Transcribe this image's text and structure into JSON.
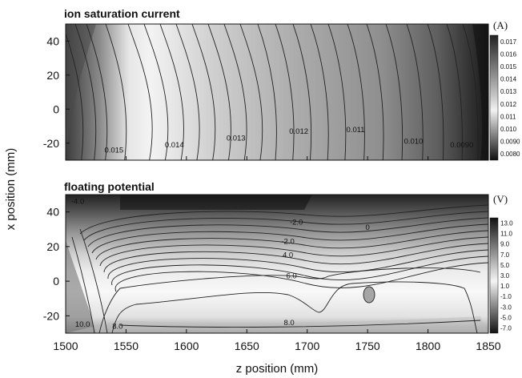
{
  "chart_data": [
    {
      "type": "contour",
      "title": "ion saturation current",
      "unit": "(A)",
      "xlabel": "z position (mm)",
      "ylabel": "x position (mm)",
      "xlim": [
        1500,
        1850
      ],
      "ylim": [
        -30,
        50
      ],
      "x_ticks": [
        "1500",
        "1550",
        "1600",
        "1650",
        "1700",
        "1750",
        "1800",
        "1850"
      ],
      "y_ticks": [
        "40",
        "20",
        "0",
        "-20"
      ],
      "colorbar_ticks": [
        "0.017",
        "0.016",
        "0.015",
        "0.014",
        "0.013",
        "0.012",
        "0.011",
        "0.010",
        "0.0090",
        "0.0080"
      ],
      "contour_labels": [
        {
          "text": "0.015",
          "z": 1540,
          "x": -24
        },
        {
          "text": "0.014",
          "z": 1590,
          "x": -21
        },
        {
          "text": "0.013",
          "z": 1641,
          "x": -17
        },
        {
          "text": "0.012",
          "z": 1693,
          "x": -13
        },
        {
          "text": "0.011",
          "z": 1740,
          "x": -12
        },
        {
          "text": "0.010",
          "z": 1788,
          "x": -19
        },
        {
          "text": "0.0090",
          "z": 1828,
          "x": -21
        }
      ]
    },
    {
      "type": "contour",
      "title": "floating potential",
      "unit": "(V)",
      "xlabel": "z position (mm)",
      "ylabel": "x position (mm)",
      "xlim": [
        1500,
        1850
      ],
      "ylim": [
        -30,
        50
      ],
      "x_ticks": [
        "1500",
        "1550",
        "1600",
        "1650",
        "1700",
        "1750",
        "1800",
        "1850"
      ],
      "y_ticks": [
        "40",
        "20",
        "0",
        "-20"
      ],
      "colorbar_ticks": [
        "13.0",
        "11.0",
        "9.0",
        "7.0",
        "5.0",
        "3.0",
        "1.0",
        "-1.0",
        "-3.0",
        "-5.0",
        "-7.0"
      ],
      "contour_labels": [
        {
          "text": "-4.0",
          "z": 1510,
          "x": 46
        },
        {
          "text": "-2.0",
          "z": 1691,
          "x": 34
        },
        {
          "text": "0",
          "z": 1750,
          "x": 31
        },
        {
          "text": "-2.0",
          "z": 1684,
          "x": 23
        },
        {
          "text": "4.0",
          "z": 1684,
          "x": 15
        },
        {
          "text": "6.0",
          "z": 1687,
          "x": 3
        },
        {
          "text": "10.0",
          "z": 1514,
          "x": -25
        },
        {
          "text": "8.0",
          "z": 1543,
          "x": -26
        },
        {
          "text": "8.0",
          "z": 1685,
          "x": -24
        }
      ]
    }
  ],
  "colors": {
    "ink": "#111111",
    "panel_light": "#f4f4f4",
    "panel_dark": "#1a1a1a"
  }
}
